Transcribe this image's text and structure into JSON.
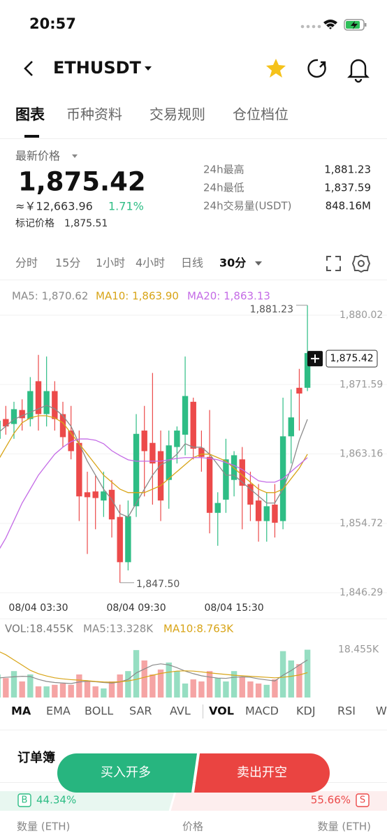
{
  "status_bar": {
    "time": "20:57"
  },
  "header": {
    "symbol": "ETHUSDT"
  },
  "tabs": [
    "图表",
    "币种资料",
    "交易规则",
    "仓位档位"
  ],
  "price_panel": {
    "label": "最新价格",
    "last_price": "1,875.42",
    "fiat_price": "≈￥12,663.96",
    "change": "1.71%",
    "mark_label": "标记价格",
    "mark_price": "1,875.51",
    "stats": [
      {
        "label": "24h最高",
        "value": "1,881.23"
      },
      {
        "label": "24h最低",
        "value": "1,837.59"
      },
      {
        "label": "24h交易量(USDT)",
        "value": "848.16M"
      }
    ]
  },
  "intervals": [
    "分时",
    "15分",
    "1小时",
    "4小时",
    "日线",
    "30分"
  ],
  "chart_data": [
    {
      "type": "candlestick",
      "categories": [
        null,
        null,
        null,
        null,
        null,
        "08/04 03:30",
        null,
        null,
        null,
        null,
        null,
        null,
        null,
        null,
        null,
        null,
        null,
        "08/04 09:30",
        null,
        null,
        null,
        null,
        null,
        null,
        null,
        null,
        null,
        null,
        null,
        "08/04 15:30",
        null,
        null,
        null,
        null,
        null,
        null,
        null,
        null,
        null
      ],
      "open": [
        1865.0,
        1867.4,
        1866.8,
        1868.5,
        1867.4,
        1872.0,
        1868.0,
        1870.8,
        1868.0,
        1866.0,
        1864.5,
        1858.5,
        1858.6,
        1857.5,
        1858.8,
        1855.5,
        1850.0,
        1856.8,
        1866.0,
        1864.5,
        1863.5,
        1860.0,
        1864.0,
        1865.5,
        1869.5,
        1863.9,
        1862.8,
        1856.0,
        1857.6,
        1860.0,
        1862.5,
        1859.5,
        1857.5,
        1855.0,
        1857.0,
        1855.0,
        1865.3,
        1871.2,
        1871.2
      ],
      "high": [
        1867.5,
        1869.0,
        1869.5,
        1869.8,
        1872.5,
        1875.2,
        1875.0,
        1872.0,
        1869.5,
        1869.0,
        1866.0,
        1861.0,
        1860.5,
        1861.0,
        1860.0,
        1857.0,
        1857.5,
        1868.0,
        1869.0,
        1873.0,
        1866.0,
        1866.0,
        1866.5,
        1875.0,
        1870.0,
        1866.0,
        1868.5,
        1858.5,
        1865.0,
        1863.5,
        1864.0,
        1861.0,
        1859.5,
        1858.5,
        1859.5,
        1870.0,
        1871.0,
        1873.5,
        1881.23
      ],
      "low": [
        1862.0,
        1865.5,
        1865.0,
        1866.0,
        1866.5,
        1866.0,
        1866.5,
        1866.0,
        1864.0,
        1862.5,
        1855.0,
        1851.0,
        1854.0,
        1855.5,
        1853.0,
        1847.5,
        1849.0,
        1855.5,
        1858.0,
        1857.0,
        1855.0,
        1856.5,
        1862.0,
        1863.0,
        1862.5,
        1861.0,
        1853.5,
        1852.0,
        1856.0,
        1858.0,
        1854.0,
        1855.0,
        1852.5,
        1852.5,
        1853.0,
        1854.0,
        1862.0,
        1866.0,
        1870.8
      ],
      "close": [
        1867.2,
        1866.5,
        1868.6,
        1867.5,
        1870.8,
        1868.0,
        1870.8,
        1867.4,
        1865.2,
        1863.5,
        1858.0,
        1857.9,
        1857.8,
        1858.6,
        1855.2,
        1850.0,
        1855.6,
        1865.6,
        1863.5,
        1862.0,
        1857.5,
        1864.2,
        1866.0,
        1870.2,
        1863.8,
        1862.8,
        1856.0,
        1857.2,
        1862.5,
        1863.0,
        1859.3,
        1857.0,
        1855.0,
        1856.8,
        1854.8,
        1865.3,
        1867.6,
        1870.5,
        1875.42
      ],
      "up_color": "#2ebd85",
      "down_color": "#ec4a4a",
      "series": [
        {
          "name": "MA5: 1,870.62",
          "color": "#8a8a8a",
          "values": [
            1865.67,
            1866.52,
            1867.37,
            1867.8,
            1868.22,
            1868.65,
            1869.07,
            1868.65,
            1867.8,
            1866.52,
            1864.4,
            1862.28,
            1860.58,
            1858.88,
            1857.61,
            1855.91,
            1855.49,
            1857.19,
            1858.88,
            1860.58,
            1861.86,
            1862.28,
            1863.13,
            1864.4,
            1863.98,
            1863.98,
            1863.13,
            1861.86,
            1860.58,
            1860.58,
            1859.73,
            1858.88,
            1858.04,
            1857.19,
            1857.19,
            1858.88,
            1861.43,
            1864.83,
            1867.37
          ]
        },
        {
          "name": "MA10: 1,863.90",
          "color": "#d8a417",
          "values": [
            1862.28,
            1863.98,
            1865.67,
            1866.95,
            1867.54,
            1867.8,
            1867.8,
            1867.54,
            1866.95,
            1865.67,
            1864.4,
            1863.13,
            1861.86,
            1860.58,
            1859.73,
            1858.88,
            1858.46,
            1858.46,
            1858.46,
            1858.88,
            1859.31,
            1860.16,
            1861.01,
            1861.86,
            1862.71,
            1863.13,
            1863.13,
            1862.71,
            1862.28,
            1861.43,
            1860.58,
            1859.73,
            1858.88,
            1858.46,
            1858.46,
            1858.88,
            1860.16,
            1861.43,
            1863.13
          ]
        },
        {
          "name": "MA20: 1,863.13",
          "color": "#c46be6",
          "values": [
            1851.24,
            1852.94,
            1855.06,
            1857.19,
            1858.88,
            1860.58,
            1861.86,
            1863.13,
            1863.98,
            1864.66,
            1864.98,
            1864.98,
            1864.83,
            1864.4,
            1863.55,
            1862.96,
            1862.45,
            1862.28,
            1862.28,
            1862.28,
            1862.28,
            1862.45,
            1862.62,
            1862.71,
            1862.71,
            1862.71,
            1862.62,
            1862.45,
            1862.11,
            1861.77,
            1861.26,
            1860.58,
            1859.9,
            1859.73,
            1859.73,
            1860.16,
            1861.01,
            1861.86,
            1862.71
          ]
        }
      ],
      "ylim": [
        1845.53,
        1883.93
      ],
      "yticks": [
        {
          "value": 1880.02,
          "label": "1,880.02"
        },
        {
          "value": 1871.59,
          "label": "1,871.59"
        },
        {
          "value": 1863.16,
          "label": "1,863.16"
        },
        {
          "value": 1854.72,
          "label": "1,854.72"
        },
        {
          "value": 1846.29,
          "label": "1,846.29"
        }
      ],
      "grid": true,
      "annotations": [
        "1,881.23",
        "1,847.50"
      ],
      "last_price_tag": "1,875.42"
    },
    {
      "type": "bar",
      "label": "VOL:18.455K",
      "values": [
        8.9,
        7.5,
        10.2,
        6.2,
        8.9,
        4.3,
        4.3,
        4.9,
        5.4,
        4.9,
        8.9,
        6.2,
        4.3,
        3.5,
        6.2,
        8.9,
        10.2,
        18.3,
        14.3,
        8.9,
        10.8,
        13.5,
        10.2,
        5.4,
        7.0,
        6.2,
        10.2,
        7.5,
        6.2,
        10.2,
        8.1,
        6.2,
        5.4,
        4.9,
        7.0,
        17.9,
        14.3,
        12.9,
        18.455
      ],
      "series": [
        {
          "name": "MA5:13.328K",
          "color": "#8a8a8a",
          "values": [
            7.5,
            7.8,
            8.0,
            8.2,
            8.1,
            7.0,
            6.2,
            5.8,
            5.6,
            5.4,
            6.0,
            6.3,
            6.1,
            5.8,
            5.6,
            6.0,
            7.0,
            9.5,
            11.0,
            12.5,
            13.0,
            12.6,
            11.5,
            10.2,
            9.2,
            8.4,
            7.9,
            7.5,
            7.4,
            7.8,
            8.0,
            7.8,
            7.2,
            6.8,
            6.4,
            8.6,
            10.4,
            12.5,
            14.5
          ]
        },
        {
          "name": "MA10:8.763K",
          "color": "#d8a417",
          "values": [
            18.0,
            16.5,
            14.5,
            12.5,
            10.5,
            9.2,
            8.3,
            7.6,
            7.2,
            6.9,
            6.7,
            6.5,
            6.2,
            6.0,
            5.9,
            6.1,
            6.4,
            7.0,
            7.8,
            8.6,
            9.3,
            9.8,
            10.2,
            10.3,
            10.2,
            9.9,
            9.5,
            9.2,
            8.9,
            8.6,
            8.4,
            8.2,
            8.0,
            7.8,
            7.6,
            7.8,
            8.2,
            8.7,
            9.6
          ]
        }
      ],
      "ylim": [
        0,
        20.5
      ],
      "yticks": [
        {
          "value": 18.455,
          "label": "18.455K"
        }
      ]
    }
  ],
  "indicator_tabs": [
    "MA",
    "EMA",
    "BOLL",
    "SAR",
    "AVL",
    "VOL",
    "MACD",
    "KDJ",
    "RSI",
    "W"
  ],
  "order_book": {
    "title": "订单簿",
    "buy_badge": "B",
    "sell_badge": "S",
    "ratio": {
      "values": [
        44.34,
        55.66
      ],
      "value_labels": [
        "44.34%",
        "55.66%"
      ]
    },
    "columns": [
      "数量 (ETH)",
      "价格",
      "数量 (ETH)"
    ]
  },
  "buttons": [
    "买入开多",
    "卖出开空"
  ]
}
